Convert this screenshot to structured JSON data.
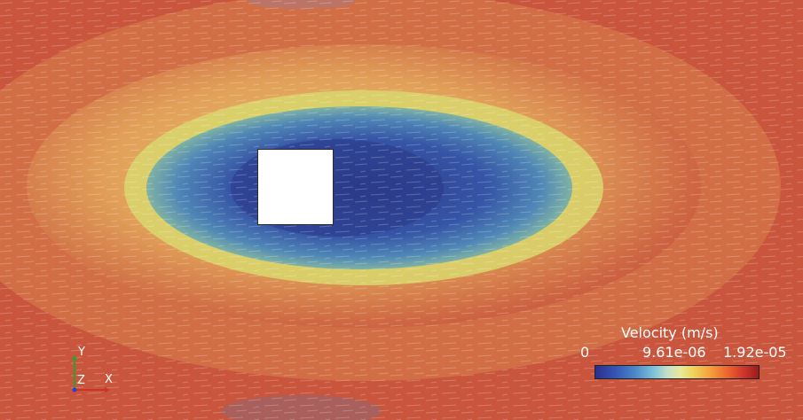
{
  "colorbar": {
    "title": "Velocity (m/s)",
    "tick_min": "0",
    "tick_mid": "9.61e-06",
    "tick_max": "1.92e-05",
    "range": [
      0,
      1.92e-05
    ],
    "colors": [
      "#2b2f8c",
      "#4a86c8",
      "#e8ea9c",
      "#f4a23c",
      "#d2382a",
      "#9a1c1c"
    ]
  },
  "axes_triad": {
    "y_label": "Y",
    "z_label": "Z",
    "x_label": "X",
    "y_color": "#2fa02f",
    "x_color": "#d0302a",
    "origin_color": "#2a40d0"
  },
  "field": {
    "far_color": "#c8553c",
    "mid_color": "#e3a85a",
    "near_color": "#d8d86a",
    "wake_color": "#3b5aa8",
    "core_color": "#2c3a8a"
  }
}
